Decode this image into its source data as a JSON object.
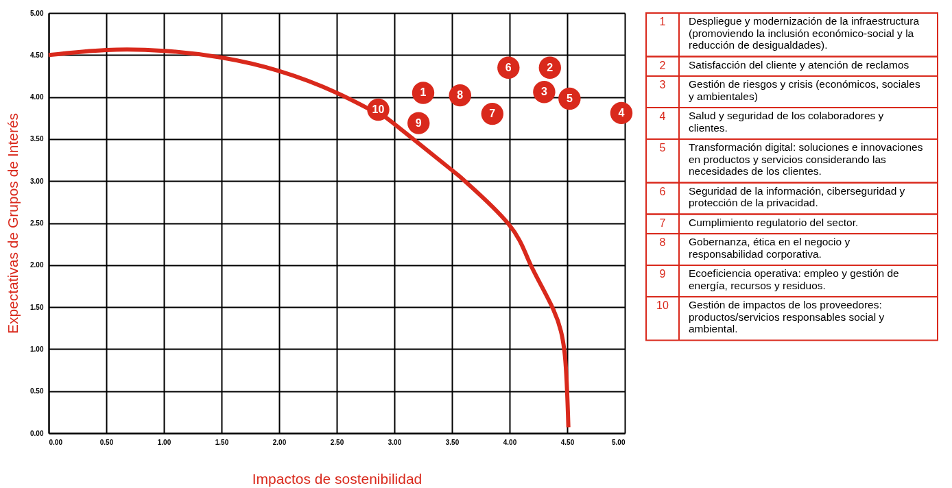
{
  "chart_data": [
    {
      "type": "scatter",
      "legend": "right",
      "xlabel": "Impactos de sostenibilidad",
      "ylabel": "Expectativas de Grupos de Interés",
      "grid": true,
      "xlim": [
        0,
        5
      ],
      "ylim": [
        0,
        5
      ],
      "xticks": [
        {
          "value": 0,
          "label": "0.00"
        },
        {
          "value": 0.5,
          "label": "0.50"
        },
        {
          "value": 1,
          "label": "1.00"
        },
        {
          "value": 1.5,
          "label": "1.50"
        },
        {
          "value": 2,
          "label": "2.00"
        },
        {
          "value": 2.5,
          "label": "2.50"
        },
        {
          "value": 3,
          "label": "3.00"
        },
        {
          "value": 3.5,
          "label": "3.50"
        },
        {
          "value": 4,
          "label": "4.00"
        },
        {
          "value": 4.5,
          "label": "4.50"
        },
        {
          "value": 5,
          "label": "5.00"
        }
      ],
      "yticks": [
        {
          "value": 0,
          "label": "0.00"
        },
        {
          "value": 0.5,
          "label": "0.50"
        },
        {
          "value": 1,
          "label": "1.00"
        },
        {
          "value": 1.5,
          "label": "1.50"
        },
        {
          "value": 2,
          "label": "2.00"
        },
        {
          "value": 2.5,
          "label": "2.50"
        },
        {
          "value": 3,
          "label": "3.00"
        },
        {
          "value": 3.5,
          "label": "3.50"
        },
        {
          "value": 4,
          "label": "4.00"
        },
        {
          "value": 4.5,
          "label": "4.50"
        },
        {
          "value": 5,
          "label": "5.00"
        }
      ],
      "series": [
        {
          "type": "line",
          "color": "#d9291c",
          "line_style": "solid",
          "x": [
            0,
            0.5,
            1.0,
            1.5,
            2.0,
            2.5,
            2.85,
            2.99,
            3.49,
            3.62,
            3.99,
            4.18,
            4.38,
            4.48,
            4.51
          ],
          "values": [
            4.5,
            4.56,
            4.55,
            4.47,
            4.31,
            4.05,
            3.81,
            3.69,
            3.14,
            2.99,
            2.49,
            2.01,
            1.47,
            0.92,
            0.07
          ]
        },
        {
          "type": "scatter",
          "name": "1",
          "color": "#d9291c",
          "marker": "circle",
          "x": [
            3.25
          ],
          "values": [
            4.05
          ]
        },
        {
          "type": "scatter",
          "name": "2",
          "color": "#d9291c",
          "marker": "circle",
          "x": [
            4.35
          ],
          "values": [
            4.35
          ]
        },
        {
          "type": "scatter",
          "name": "3",
          "color": "#d9291c",
          "marker": "circle",
          "x": [
            4.3
          ],
          "values": [
            4.06
          ]
        },
        {
          "type": "scatter",
          "name": "4",
          "color": "#d9291c",
          "marker": "circle",
          "x": [
            4.97
          ],
          "values": [
            3.81
          ]
        },
        {
          "type": "scatter",
          "name": "5",
          "color": "#d9291c",
          "marker": "circle",
          "x": [
            4.52
          ],
          "values": [
            3.98
          ]
        },
        {
          "type": "scatter",
          "name": "6",
          "color": "#d9291c",
          "marker": "circle",
          "x": [
            3.99
          ],
          "values": [
            4.35
          ]
        },
        {
          "type": "scatter",
          "name": "7",
          "color": "#d9291c",
          "marker": "circle",
          "x": [
            3.85
          ],
          "values": [
            3.8
          ]
        },
        {
          "type": "scatter",
          "name": "8",
          "color": "#d9291c",
          "marker": "circle",
          "x": [
            3.57
          ],
          "values": [
            4.02
          ]
        },
        {
          "type": "scatter",
          "name": "9",
          "color": "#d9291c",
          "marker": "circle",
          "x": [
            3.21
          ],
          "values": [
            3.69
          ]
        },
        {
          "type": "scatter",
          "name": "10",
          "color": "#d9291c",
          "marker": "circle",
          "x": [
            2.86
          ],
          "values": [
            3.85
          ]
        }
      ]
    },
    {
      "type": "other",
      "categories": [
        "1",
        "2",
        "3",
        "4",
        "5",
        "6",
        "7",
        "8",
        "9",
        "10"
      ],
      "annotations": [
        "Despliegue y modernización de la infraestructura (promoviendo la inclusión económico-social y la reducción de desigualdades).",
        "Satisfacción del cliente y atención de reclamos",
        "Gestión de riesgos y crisis (económicos, sociales y ambientales)",
        "Salud y seguridad de los colaboradores y clientes.",
        "Transformación digital: soluciones e innovaciones en productos y servicios considerando las necesidades de los clientes.",
        "Seguridad de la información, ciberseguridad y protección de la privacidad.",
        "Cumplimiento regulatorio del sector.",
        "Gobernanza, ética en el negocio y responsabilidad corporativa.",
        "Ecoeficiencia operativa: empleo y gestión de energía, recursos y residuos.",
        "Gestión de impactos de los proveedores: productos/servicios responsables social y ambiental."
      ]
    }
  ]
}
